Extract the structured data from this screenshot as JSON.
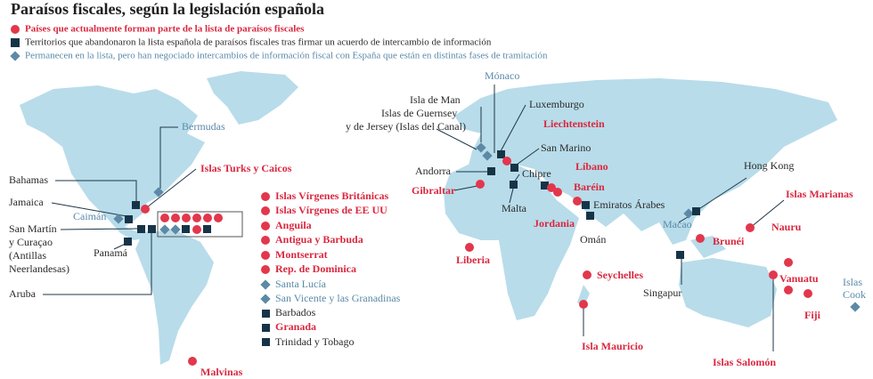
{
  "title": "Paraísos fiscales, según la legislación española",
  "legend": [
    "Países que actualmente forman parte de la lista de paraísos fiscales",
    "Territorios que abandonaron la lista española de paraísos fiscales tras firmar un acuerdo de intercambio de información",
    "Permanecen en la lista, pero han negociado intercambios de información fiscal con España que están en distintas fases de tramitación"
  ],
  "caribbean_list": [
    "Islas Vírgenes Británicas",
    "Islas Vírgenes de EE UU",
    "Anguila",
    "Antigua y Barbuda",
    "Montserrat",
    "Rep. de Dominica",
    "Santa Lucía",
    "San Vicente y las Granadinas",
    "Barbados",
    "Granada",
    "Trinidad y Tobago"
  ],
  "places": [
    "Bermudas",
    "Islas Turks y Caicos",
    "Bahamas",
    "Jamaica",
    "Caimán",
    [
      "San Martín",
      "y Curaçao",
      "(Antillas",
      "Neerlandesas)"
    ],
    "Panamá",
    "Aruba",
    "Malvinas",
    "Isla de Man",
    "Mónaco",
    "Luxemburgo",
    [
      "Islas de Guernsey",
      "y de Jersey (Islas del Canal)"
    ],
    "Liechtenstein",
    "San Marino",
    "Andorra",
    "Chipre",
    "Gibraltar",
    "Malta",
    "Líbano",
    "Baréin",
    "Jordania",
    "Emiratos Árabes",
    "Omán",
    "Liberia",
    "Seychelles",
    "Isla Mauricio",
    "Hong Kong",
    "Macao",
    "Brunéi",
    "Singapur",
    "Islas Marianas",
    "Nauru",
    "Vanuatu",
    "Fiji",
    [
      "Islas",
      "Cook"
    ],
    "Islas Salomón"
  ]
}
